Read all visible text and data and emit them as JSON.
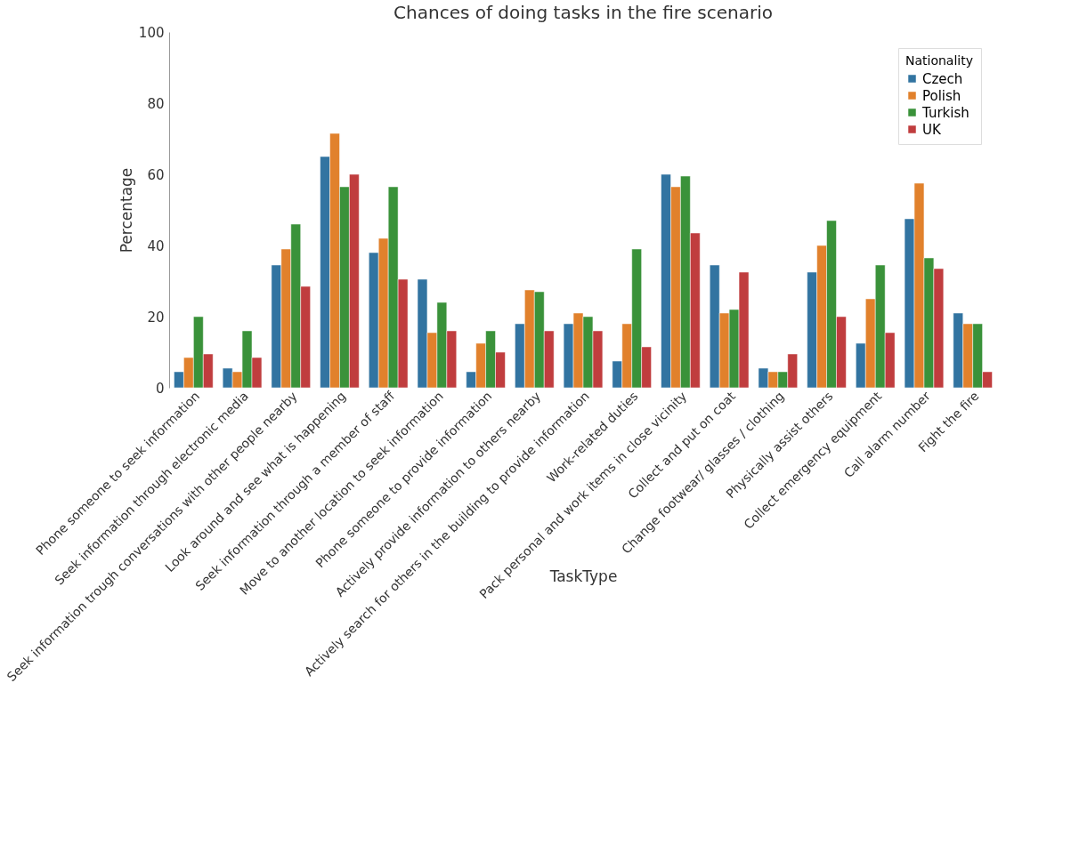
{
  "chart_data": {
    "type": "bar",
    "title": "Chances of doing tasks in the fire scenario",
    "xlabel": "TaskType",
    "ylabel": "Percentage",
    "legend_title": "Nationality",
    "categories": [
      "Phone someone to seek information",
      "Seek information through electronic media",
      "Seek information trough conversations with other people nearby",
      "Look around and see what is happening",
      "Seek information through a member of staff",
      "Move to another location to seek information",
      "Phone someone to provide information",
      "Actively provide information to others nearby",
      "Actively search for others in the building to provide information",
      "Work-related duties",
      "Pack personal and work items in close vicinity",
      "Collect and put on coat",
      "Change footwear/ glasses / clothing",
      "Physically assist others",
      "Collect emergency equipment",
      "Call alarm number",
      "Fight the fire"
    ],
    "series": [
      {
        "name": "Czech",
        "color": "#3274a1",
        "values": [
          4.5,
          5.5,
          34.5,
          65,
          38,
          30.5,
          4.5,
          18,
          18,
          7.5,
          60,
          34.5,
          5.5,
          32.5,
          12.5,
          47.5,
          21
        ]
      },
      {
        "name": "Polish",
        "color": "#e1812c",
        "values": [
          8.5,
          4.5,
          39,
          71.5,
          42,
          15.5,
          12.5,
          27.5,
          21,
          18,
          56.5,
          21,
          4.5,
          40,
          25,
          57.5,
          18
        ]
      },
      {
        "name": "Turkish",
        "color": "#3a923a",
        "values": [
          20,
          16,
          46,
          56.5,
          56.5,
          24,
          16,
          27,
          20,
          39,
          59.5,
          22,
          4.5,
          47,
          34.5,
          36.5,
          18
        ]
      },
      {
        "name": "UK",
        "color": "#c03d3e",
        "values": [
          9.5,
          8.5,
          28.5,
          60,
          30.5,
          16,
          10,
          16,
          16,
          11.5,
          43.5,
          32.5,
          9.5,
          20,
          15.5,
          33.5,
          4.5
        ]
      }
    ],
    "ylim": [
      0,
      100
    ],
    "yticks": [
      0,
      20,
      40,
      60,
      80,
      100
    ],
    "grid": false,
    "legend": "top right"
  }
}
